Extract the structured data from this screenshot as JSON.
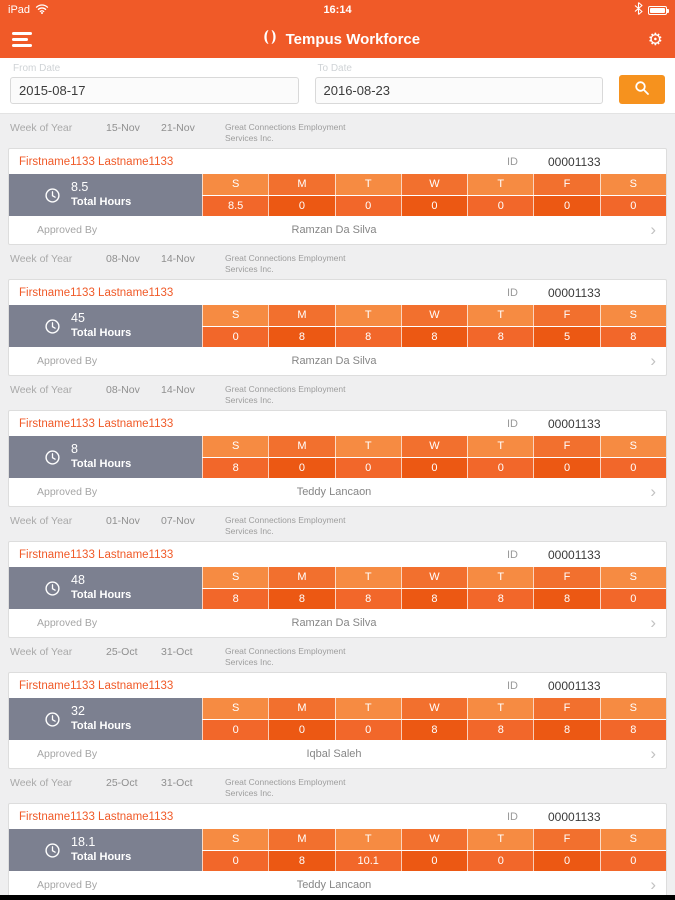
{
  "status_bar": {
    "device": "iPad",
    "time": "16:14"
  },
  "header": {
    "title": "Tempus Workforce"
  },
  "filters": {
    "from": {
      "label": "From Date",
      "value": "2015-08-17"
    },
    "to": {
      "label": "To Date",
      "value": "2016-08-23"
    }
  },
  "colors": {
    "accent": "#f05a28",
    "search_button": "#f6921e",
    "total_block": "#7c8090"
  },
  "icons": [
    "wifi-icon",
    "bluetooth-icon",
    "battery-icon",
    "menu-icon",
    "logo-icon",
    "gear-icon",
    "search-icon",
    "clock-icon",
    "chevron-right-icon"
  ],
  "days": [
    "S",
    "M",
    "T",
    "W",
    "T",
    "F",
    "S"
  ],
  "cards": [
    {
      "week_label": "Week of Year",
      "start": "15-Nov",
      "end": "21-Nov",
      "company": "Great Connections Employment Services Inc.",
      "name": "Firstname1133 Lastname1133",
      "id_label": "ID",
      "id": "00001133",
      "total": "8.5",
      "total_label": "Total Hours",
      "values": [
        "8.5",
        "0",
        "0",
        "0",
        "0",
        "0",
        "0"
      ],
      "approved_label": "Approved By",
      "approver": "Ramzan Da Silva"
    },
    {
      "week_label": "Week of Year",
      "start": "08-Nov",
      "end": "14-Nov",
      "company": "Great Connections Employment Services Inc.",
      "name": "Firstname1133 Lastname1133",
      "id_label": "ID",
      "id": "00001133",
      "total": "45",
      "total_label": "Total Hours",
      "values": [
        "0",
        "8",
        "8",
        "8",
        "8",
        "5",
        "8"
      ],
      "approved_label": "Approved By",
      "approver": "Ramzan Da Silva"
    },
    {
      "week_label": "Week of Year",
      "start": "08-Nov",
      "end": "14-Nov",
      "company": "Great Connections Employment Services Inc.",
      "name": "Firstname1133 Lastname1133",
      "id_label": "ID",
      "id": "00001133",
      "total": "8",
      "total_label": "Total Hours",
      "values": [
        "8",
        "0",
        "0",
        "0",
        "0",
        "0",
        "0"
      ],
      "approved_label": "Approved By",
      "approver": "Teddy Lancaon"
    },
    {
      "week_label": "Week of Year",
      "start": "01-Nov",
      "end": "07-Nov",
      "company": "Great Connections Employment Services Inc.",
      "name": "Firstname1133 Lastname1133",
      "id_label": "ID",
      "id": "00001133",
      "total": "48",
      "total_label": "Total Hours",
      "values": [
        "8",
        "8",
        "8",
        "8",
        "8",
        "8",
        "0"
      ],
      "approved_label": "Approved By",
      "approver": "Ramzan Da Silva"
    },
    {
      "week_label": "Week of Year",
      "start": "25-Oct",
      "end": "31-Oct",
      "company": "Great Connections Employment Services Inc.",
      "name": "Firstname1133 Lastname1133",
      "id_label": "ID",
      "id": "00001133",
      "total": "32",
      "total_label": "Total Hours",
      "values": [
        "0",
        "0",
        "0",
        "8",
        "8",
        "8",
        "8"
      ],
      "approved_label": "Approved By",
      "approver": "Iqbal Saleh"
    },
    {
      "week_label": "Week of Year",
      "start": "25-Oct",
      "end": "31-Oct",
      "company": "Great Connections Employment Services Inc.",
      "name": "Firstname1133 Lastname1133",
      "id_label": "ID",
      "id": "00001133",
      "total": "18.1",
      "total_label": "Total Hours",
      "values": [
        "0",
        "8",
        "10.1",
        "0",
        "0",
        "0",
        "0"
      ],
      "approved_label": "Approved By",
      "approver": "Teddy Lancaon"
    }
  ]
}
